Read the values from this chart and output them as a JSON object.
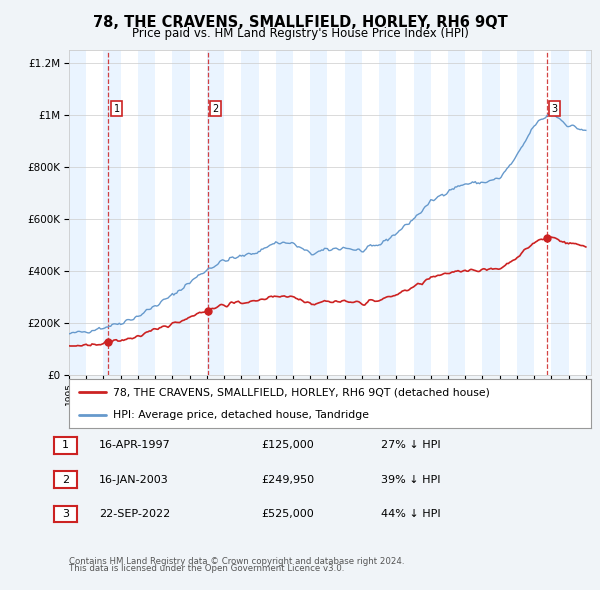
{
  "title": "78, THE CRAVENS, SMALLFIELD, HORLEY, RH6 9QT",
  "subtitle": "Price paid vs. HM Land Registry's House Price Index (HPI)",
  "transactions": [
    {
      "num": 1,
      "date": "16-APR-1997",
      "price": 125000,
      "pct": "27% ↓ HPI",
      "x_year": 1997.29
    },
    {
      "num": 2,
      "date": "16-JAN-2003",
      "price": 249950,
      "pct": "39% ↓ HPI",
      "x_year": 2003.04
    },
    {
      "num": 3,
      "date": "22-SEP-2022",
      "price": 525000,
      "pct": "44% ↓ HPI",
      "x_year": 2022.72
    }
  ],
  "legend_line1": "78, THE CRAVENS, SMALLFIELD, HORLEY, RH6 9QT (detached house)",
  "legend_line2": "HPI: Average price, detached house, Tandridge",
  "footer1": "Contains HM Land Registry data © Crown copyright and database right 2024.",
  "footer2": "This data is licensed under the Open Government Licence v3.0.",
  "xmin": 1995.0,
  "xmax": 2025.3,
  "ymin": 0,
  "ymax": 1250000,
  "bg_color": "#f0f4f8",
  "plot_bg_color": "#ffffff",
  "hpi_color": "#6699cc",
  "price_color": "#cc2222",
  "dashed_color": "#cc2222",
  "shade_color": "#ddeeff",
  "grid_color": "#cccccc"
}
